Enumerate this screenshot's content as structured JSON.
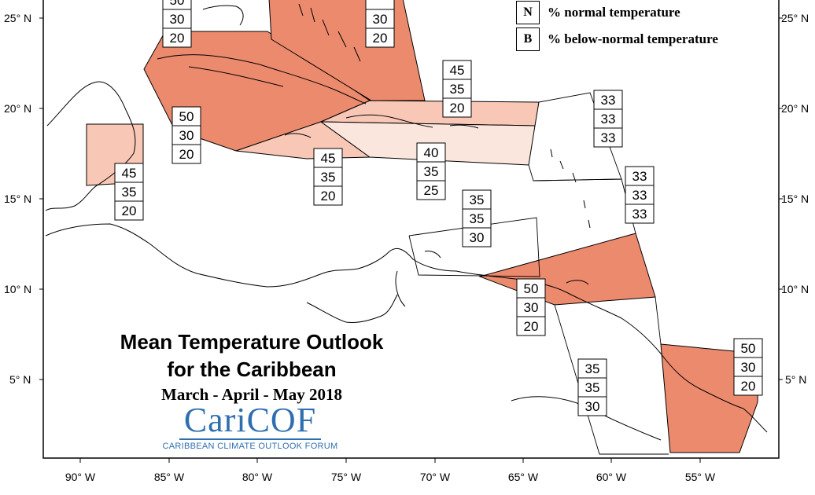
{
  "title_line1": "Mean Temperature Outlook",
  "title_line2": "for the Caribbean",
  "period": "March - April - May 2018",
  "logo": {
    "name": "CariCOF",
    "tagline": "CARIBBEAN CLIMATE OUTLOOK FORUM"
  },
  "legend": [
    {
      "key": "N",
      "label": "% normal temperature"
    },
    {
      "key": "B",
      "label": "% below-normal temperature"
    }
  ],
  "lat_ticks": [
    "25° N",
    "20° N",
    "15° N",
    "10° N",
    "5° N"
  ],
  "lon_ticks": [
    "90° W",
    "85° W",
    "80° W",
    "75° W",
    "70° W",
    "65° W",
    "60° W",
    "55° W"
  ],
  "colors": {
    "dark": "#ec8a6e",
    "medium": "#f8c7b6",
    "light": "#fbe6de",
    "outline": "#000000"
  },
  "probabilities": [
    {
      "id": "north-top-left",
      "values": [
        "50",
        "30",
        "20"
      ]
    },
    {
      "id": "bahamas",
      "values": [
        "",
        "30",
        "20"
      ]
    },
    {
      "id": "cuba-west",
      "values": [
        "50",
        "30",
        "20"
      ]
    },
    {
      "id": "belize",
      "values": [
        "45",
        "35",
        "20"
      ]
    },
    {
      "id": "jamaica",
      "values": [
        "45",
        "35",
        "20"
      ]
    },
    {
      "id": "hispaniola",
      "values": [
        "45",
        "35",
        "20"
      ]
    },
    {
      "id": "puerto-rico",
      "values": [
        "40",
        "35",
        "25"
      ]
    },
    {
      "id": "leeward-islands",
      "values": [
        "33",
        "33",
        "33"
      ]
    },
    {
      "id": "windward-islands",
      "values": [
        "33",
        "33",
        "33"
      ]
    },
    {
      "id": "abc-islands",
      "values": [
        "35",
        "35",
        "30"
      ]
    },
    {
      "id": "trinidad",
      "values": [
        "50",
        "30",
        "20"
      ]
    },
    {
      "id": "guyana",
      "values": [
        "35",
        "35",
        "30"
      ]
    },
    {
      "id": "suriname",
      "values": [
        "50",
        "30",
        "20"
      ]
    }
  ]
}
